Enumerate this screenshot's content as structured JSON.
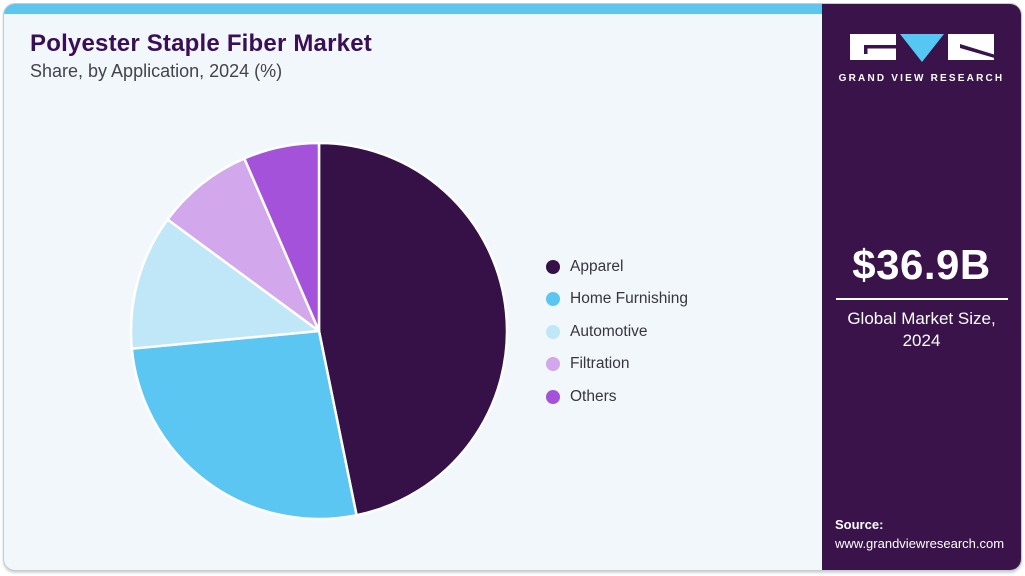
{
  "header": {
    "title": "Polyester Staple Fiber Market",
    "subtitle": "Share, by Application, 2024 (%)"
  },
  "chart_data": {
    "type": "pie",
    "title": "Polyester Staple Fiber Market Share, by Application, 2024 (%)",
    "categories": [
      "Apparel",
      "Home Furnishing",
      "Automotive",
      "Filtration",
      "Others"
    ],
    "values": [
      46.8,
      26.7,
      11.6,
      8.4,
      6.5
    ],
    "unit": "%",
    "colors": [
      "#351147",
      "#5bc6f2",
      "#c0e7f8",
      "#d2a7ec",
      "#a352d9"
    ],
    "start_angle_deg": 0,
    "direction": "clockwise",
    "legend_position": "right",
    "data_labels_shown": false
  },
  "sidebar": {
    "brand": "GRAND VIEW RESEARCH",
    "market_size_value": "$36.9B",
    "market_size_label": "Global Market Size, 2024",
    "source_label": "Source:",
    "source_url": "www.grandviewresearch.com"
  },
  "colors": {
    "accent_bar": "#5ec5ee",
    "sidebar_bg": "#391349",
    "main_bg": "#f2f7fb",
    "title": "#3a0f56",
    "logo_triangle": "#56c7f2",
    "pie_separator": "#ffffff"
  }
}
